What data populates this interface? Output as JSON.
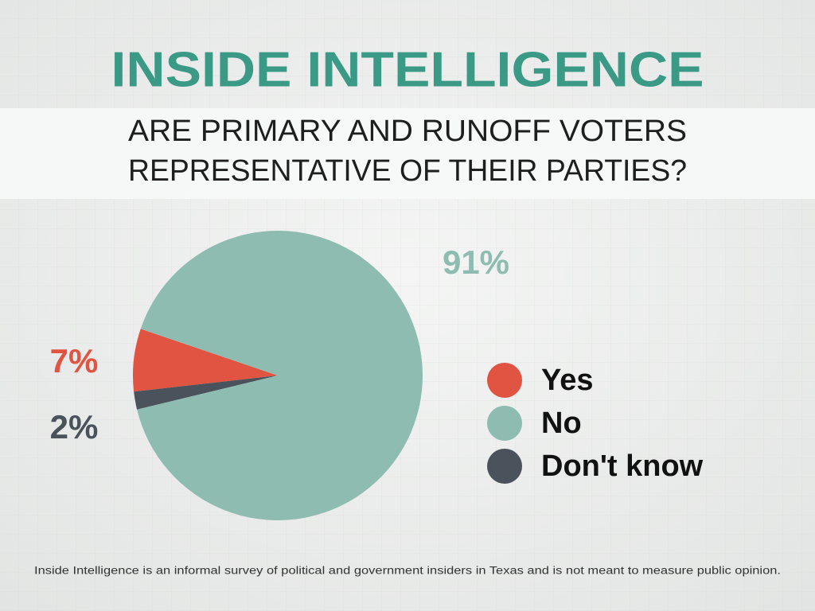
{
  "chart_data": {
    "type": "pie",
    "title": "INSIDE INTELLIGENCE",
    "subtitle": [
      "ARE PRIMARY AND RUNOFF VOTERS",
      "REPRESENTATIVE OF THEIR PARTIES?"
    ],
    "categories": [
      "Yes",
      "No",
      "Don't know"
    ],
    "values": [
      7,
      91,
      2
    ],
    "value_labels": [
      "7%",
      "91%",
      "2%"
    ],
    "colors": [
      "#e05441",
      "#8fbcb0",
      "#4a525c"
    ],
    "legend": "right",
    "footnote": "Inside Intelligence is an informal survey of political and government insiders in Texas and is not meant to measure public opinion."
  }
}
